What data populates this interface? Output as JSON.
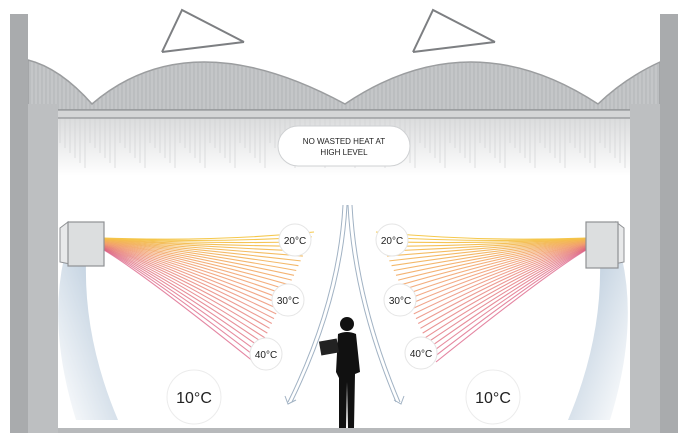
{
  "callout": {
    "line1": "NO WASTED HEAT AT",
    "line2": "HIGH LEVEL"
  },
  "temperatures": {
    "left_upper": "20°C",
    "left_mid": "30°C",
    "left_low": "40°C",
    "right_upper": "20°C",
    "right_mid": "30°C",
    "right_low": "40°C",
    "floor_left": "10°C",
    "floor_right": "10°C"
  },
  "colors": {
    "building": "#a9abad",
    "building_dark": "#8f9194",
    "heat_near": "#f4c542",
    "heat_mid": "#f19a6a",
    "heat_far": "#d8537a",
    "cool_air": "#5e86ad"
  },
  "icons": [
    "roof-vent-icon",
    "heater-unit-icon",
    "person-with-tablet-icon",
    "airflow-arrow-icon"
  ]
}
